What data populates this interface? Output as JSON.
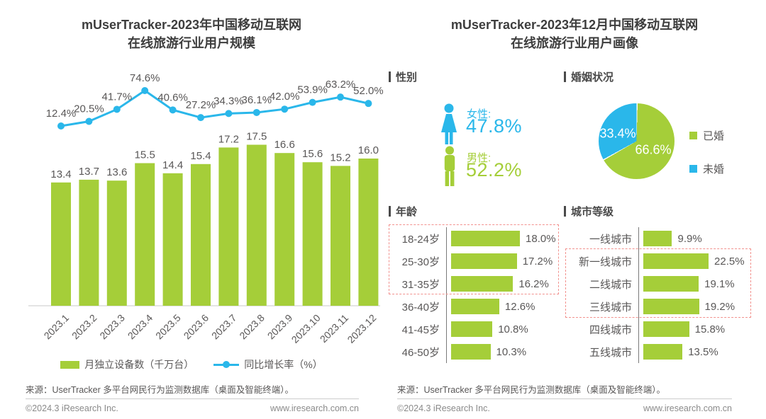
{
  "colors": {
    "green": "#a5ce39",
    "blue": "#2ab7ea",
    "label_gray": "#595757",
    "title_dark": "#3d3d3d",
    "highlight_red": "#f2928e",
    "axis_gray": "#c9c9c9"
  },
  "left": {
    "title_line1": "mUserTracker-2023年中国移动互联网",
    "title_line2": "在线旅游行业用户规模",
    "source": "来源：UserTracker 多平台网民行为监测数据库（桌面及智能终端）。",
    "copyright": "©2024.3 iResearch Inc.",
    "website": "www.iresearch.com.cn"
  },
  "right": {
    "title_line1": "mUserTracker-2023年12月中国移动互联网",
    "title_line2": "在线旅游行业用户画像",
    "gender": {
      "header": "性别",
      "female_label": "女性:",
      "female_value": "47.8%",
      "male_label": "男性:",
      "male_value": "52.2%"
    },
    "marital": {
      "header": "婚姻状况"
    },
    "age": {
      "header": "年龄"
    },
    "city": {
      "header": "城市等级"
    },
    "source": "来源：UserTracker 多平台网民行为监测数据库（桌面及智能终端）。",
    "copyright": "©2024.3 iResearch Inc.",
    "website": "www.iresearch.com.cn"
  },
  "chart_data": [
    {
      "id": "user_scale_combo",
      "type": "bar",
      "title": "mUserTracker-2023年中国移动互联网在线旅游行业用户规模",
      "categories": [
        "2023.1",
        "2023.2",
        "2023.3",
        "2023.4",
        "2023.5",
        "2023.6",
        "2023.7",
        "2023.8",
        "2023.9",
        "2023.10",
        "2023.11",
        "2023.12"
      ],
      "series": [
        {
          "name": "月独立设备数（千万台）",
          "type": "bar",
          "color": "#a5ce39",
          "values": [
            13.4,
            13.7,
            13.6,
            15.5,
            14.4,
            15.4,
            17.2,
            17.5,
            16.6,
            15.6,
            15.2,
            16.0
          ]
        },
        {
          "name": "同比增长率（%）",
          "type": "line",
          "color": "#2ab7ea",
          "unit": "%",
          "values": [
            12.4,
            20.5,
            41.7,
            74.6,
            40.6,
            27.2,
            34.3,
            36.1,
            42.0,
            53.9,
            63.2,
            52.0
          ]
        }
      ],
      "legend_position": "bottom",
      "grid": false
    },
    {
      "id": "marital_pie",
      "type": "pie",
      "title": "婚姻状况",
      "start_angle": "top",
      "direction": "clockwise",
      "legend_position": "right",
      "slices": [
        {
          "label": "已婚",
          "value": 66.6,
          "color": "#a5ce39"
        },
        {
          "label": "未婚",
          "value": 33.4,
          "color": "#2ab7ea"
        }
      ]
    },
    {
      "id": "age_bars",
      "type": "bar",
      "orientation": "horizontal",
      "title": "年龄",
      "unit": "%",
      "categories": [
        "18-24岁",
        "25-30岁",
        "31-35岁",
        "36-40岁",
        "41-45岁",
        "46-50岁"
      ],
      "values": [
        18.0,
        17.2,
        16.2,
        12.6,
        10.8,
        10.3
      ],
      "highlighted_categories": [
        "18-24岁",
        "25-30岁",
        "31-35岁"
      ]
    },
    {
      "id": "city_bars",
      "type": "bar",
      "orientation": "horizontal",
      "title": "城市等级",
      "unit": "%",
      "categories": [
        "一线城市",
        "新一线城市",
        "二线城市",
        "三线城市",
        "四线城市",
        "五线城市"
      ],
      "values": [
        9.9,
        22.5,
        19.1,
        19.2,
        15.8,
        13.5
      ],
      "highlighted_categories": [
        "新一线城市",
        "二线城市",
        "三线城市"
      ]
    }
  ]
}
